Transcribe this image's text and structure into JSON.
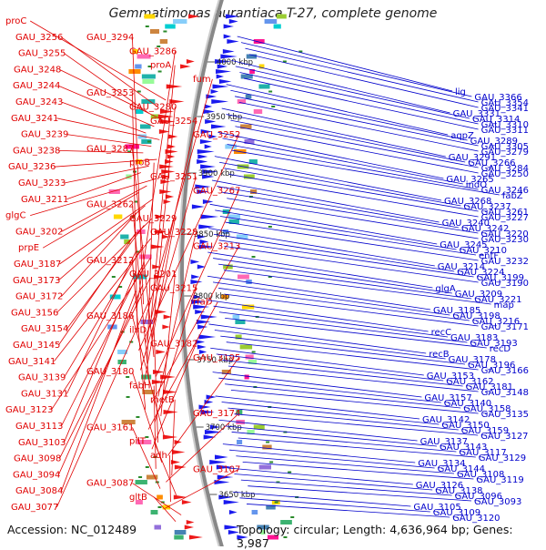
{
  "title": "Gemmatimonas aurantiaca T-27, complete genome",
  "footer": {
    "accession": "Accession: NC_012489",
    "topology": "Topology: circular; Length: 4,636,964 bp; Genes: 3,987"
  },
  "colors": {
    "left_labels": "#e00000",
    "right_labels": "#0000cc",
    "backbone": "#888888",
    "minus_strand": "#1a1aee",
    "plus_strand": "#ee1a1a",
    "rna_ticks": "#2a8a2a",
    "kbp_text": "#222222"
  },
  "kbp_marks": [
    "4000 kbp",
    "3950 kbp",
    "3900 kbp",
    "3850 kbp",
    "3800 kbp",
    "3750 kbp",
    "3700 kbp",
    "3650 kbp"
  ],
  "left_genes": [
    "proC",
    "GAU_3256",
    "GAU_3255",
    "GAU_3248",
    "GAU_3244",
    "GAU_3243",
    "GAU_3241",
    "GAU_3239",
    "GAU_3238",
    "GAU_3236",
    "GAU_3233",
    "GAU_3211",
    "glgC",
    "GAU_3202",
    "prpE",
    "GAU_3187",
    "GAU_3173",
    "GAU_3172",
    "GAU_3156",
    "GAU_3154",
    "GAU_3145",
    "GAU_3141",
    "GAU_3139",
    "GAU_3131",
    "GAU_3123",
    "GAU_3113",
    "GAU_3103",
    "GAU_3098",
    "GAU_3094",
    "GAU_3084",
    "GAU_3077",
    "GAU_3294",
    "GAU_3286",
    "proA",
    "fum",
    "GAU_3253",
    "GAU_3280",
    "GAU_3254",
    "GAU_3252",
    "GAU_3287",
    "proB",
    "GAU_3251",
    "GAU_3267",
    "GAU_3262",
    "GAU_3229",
    "GAU_3228",
    "GAU_3213",
    "GAU_3212",
    "GAU_3201",
    "GAU_3215",
    "rfaD",
    "GAU_3186",
    "ilvD",
    "GAU_3182",
    "GAU_3195",
    "GAU_3180",
    "fabH",
    "metB",
    "GAU_3174",
    "GAU_3161",
    "pilT",
    "adh",
    "GAU_3107",
    "GAU_3087",
    "gltB"
  ],
  "right_genes": [
    "lig",
    "GAU_3366",
    "GAU_3354",
    "GAU_3341",
    "GAU_3331",
    "GAU_3314",
    "GAU_3310",
    "GAU_3311",
    "aqpZ",
    "GAU_3289",
    "GAU_3305",
    "GAU_3279",
    "GAU_3291",
    "GAU_3266",
    "GAU_3284",
    "GAU_3250",
    "GAU_3265",
    "indO",
    "GAU_3246",
    "fabZ",
    "GAU_3268",
    "GAU_3237",
    "GAU_3261",
    "GAU_3227",
    "GAU_3240",
    "GAU_3242",
    "GAU_3220",
    "GAU_3230",
    "GAU_3245",
    "GAU_3210",
    "entF",
    "GAU_3232",
    "GAU_3214",
    "GAU_3224",
    "GAU_3199",
    "GAU_3190",
    "glgA",
    "GAU_3209",
    "GAU_3221",
    "map",
    "GAU_3185",
    "GAU_3198",
    "GAU_3216",
    "GAU_3171",
    "recC",
    "GAU_3183",
    "GAU_3193",
    "recD",
    "recB",
    "GAU_3178",
    "GAU_3196",
    "GAU_3166",
    "GAU_3153",
    "GAU_3162",
    "GAU_3181",
    "GAU_3148",
    "GAU_3157",
    "GAU_3140",
    "GAU_3158",
    "GAU_3135",
    "GAU_3142",
    "GAU_3150",
    "GAU_3159",
    "GAU_3127",
    "GAU_3137",
    "GAU_3143",
    "GAU_3117",
    "GAU_3129",
    "GAU_3134",
    "GAU_3144",
    "GAU_3108",
    "GAU_3119",
    "GAU_3126",
    "GAU_3138",
    "GAU_3096",
    "GAU_3093",
    "GAU_3105",
    "GAU_3109",
    "GAU_3120"
  ]
}
